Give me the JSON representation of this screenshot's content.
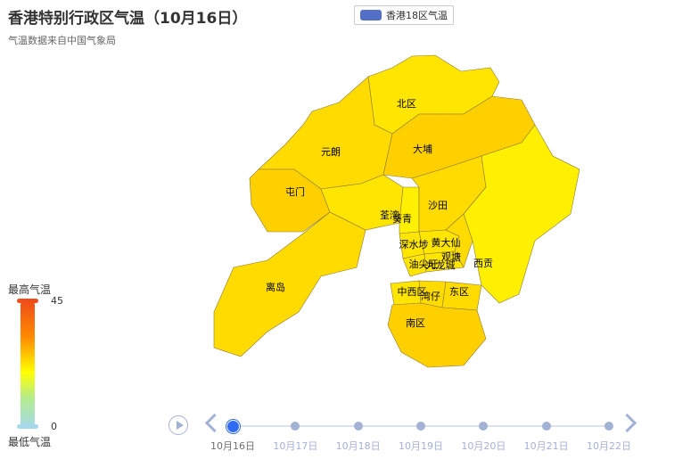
{
  "chart_data": {
    "type": "map",
    "title": "香港特别行政区气温（10月16日）",
    "subtitle": "气温数据来自中国气象局",
    "legend": [
      {
        "name": "香港18区气温",
        "color": "#5470c6"
      }
    ],
    "visual_map": {
      "max_label": "最高气温",
      "min_label": "最低气温",
      "max": 45,
      "min": 0,
      "max_text": "45",
      "min_text": "0",
      "colors": [
        "#a6d9ec",
        "#b5ec8a",
        "#ffff00",
        "#ff8a00",
        "#f04e18"
      ]
    },
    "regions": [
      {
        "name": "北区",
        "value": 25
      },
      {
        "name": "元朗",
        "value": 26
      },
      {
        "name": "大埔",
        "value": 27
      },
      {
        "name": "屯门",
        "value": 27
      },
      {
        "name": "荃湾",
        "value": 25
      },
      {
        "name": "葵青",
        "value": 24
      },
      {
        "name": "沙田",
        "value": 26
      },
      {
        "name": "深水埗",
        "value": 25
      },
      {
        "name": "黄大仙",
        "value": 25
      },
      {
        "name": "观塘",
        "value": 26
      },
      {
        "name": "油尖旺",
        "value": 25
      },
      {
        "name": "九龙城",
        "value": 25
      },
      {
        "name": "西贡",
        "value": 24
      },
      {
        "name": "离岛",
        "value": 26
      },
      {
        "name": "中西区",
        "value": 25
      },
      {
        "name": "湾仔",
        "value": 26
      },
      {
        "name": "东区",
        "value": 26
      },
      {
        "name": "南区",
        "value": 27
      }
    ],
    "timeline": [
      "10月16日",
      "10月17日",
      "10月18日",
      "10月19日",
      "10月20日",
      "10月21日",
      "10月22日"
    ],
    "timeline_current": 0
  }
}
